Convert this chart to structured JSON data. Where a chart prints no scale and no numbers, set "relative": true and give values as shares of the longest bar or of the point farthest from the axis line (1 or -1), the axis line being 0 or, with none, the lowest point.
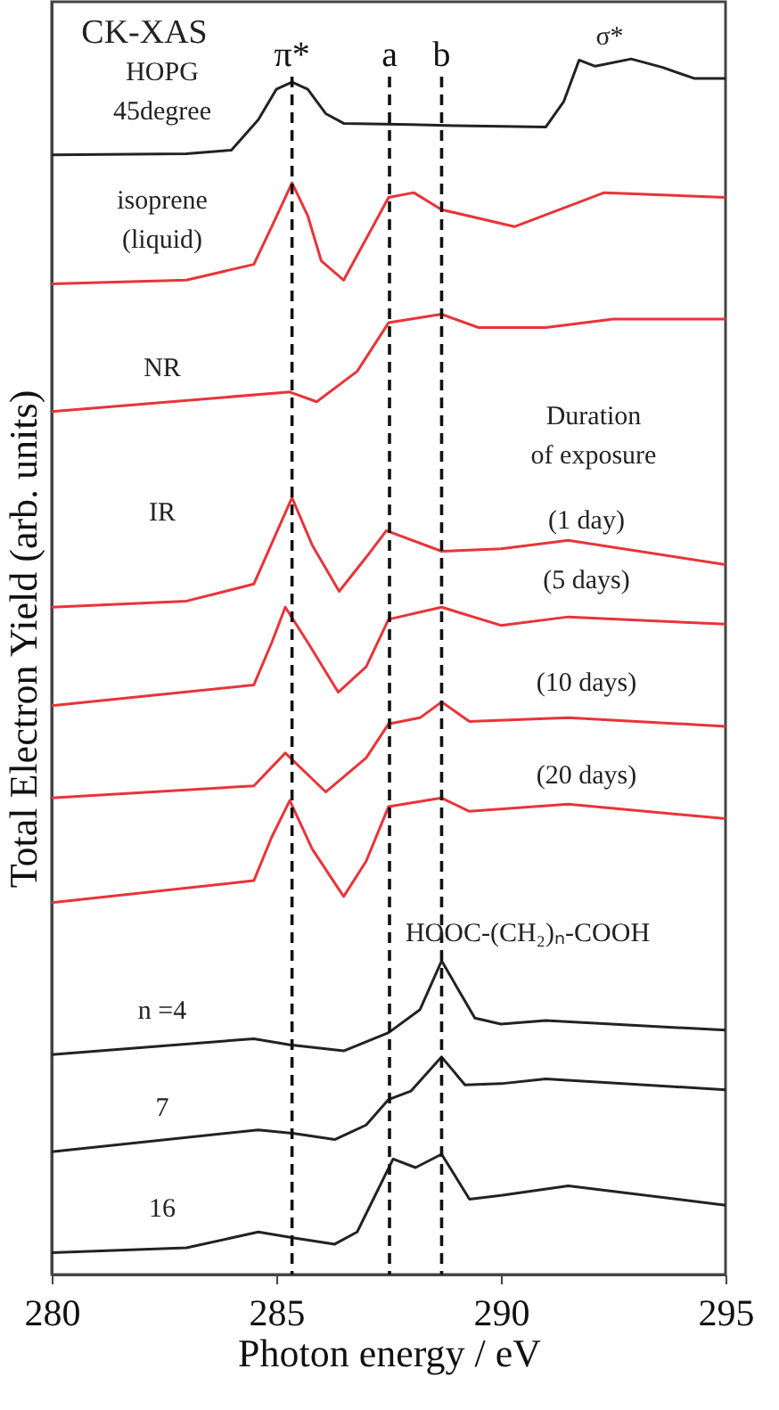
{
  "chart_data": {
    "type": "line",
    "relative": true,
    "xlabel": "Photon energy / eV",
    "ylabel": "Total Electron Yield (arb. units)",
    "xlim": [
      280,
      295
    ],
    "xticks": [
      280,
      285,
      290,
      295
    ],
    "grid": false,
    "legend": false,
    "line_style": "solid",
    "marker": "none",
    "series": [
      {
        "name": "HOPG\n45degree",
        "color": "#222222",
        "x": [
          280,
          283,
          284,
          284.6,
          285,
          285.35,
          285.7,
          286.1,
          286.5,
          288,
          289,
          291,
          291.4,
          291.74,
          292.1,
          292.9,
          293.6,
          294.3,
          295
        ],
        "values": [
          0.921,
          0.922,
          0.925,
          0.95,
          0.975,
          0.981,
          0.975,
          0.955,
          0.947,
          0.946,
          0.945,
          0.944,
          0.965,
          0.999,
          0.994,
          1.0,
          0.993,
          0.984,
          0.984
        ]
      },
      {
        "name": "isoprene\n(liquid)",
        "color": "#e8343a",
        "x": [
          280,
          283,
          284.5,
          285,
          285.35,
          285.7,
          286,
          286.5,
          287.5,
          288.06,
          288.68,
          290.3,
          292.3,
          295
        ],
        "values": [
          0.815,
          0.818,
          0.831,
          0.87,
          0.898,
          0.871,
          0.834,
          0.818,
          0.886,
          0.89,
          0.876,
          0.862,
          0.89,
          0.886
        ]
      },
      {
        "name": "NR",
        "color": "#e8343a",
        "x": [
          280,
          285.3,
          285.9,
          286.8,
          287.5,
          288.68,
          289.5,
          291,
          292.5,
          295
        ],
        "values": [
          0.71,
          0.726,
          0.718,
          0.743,
          0.783,
          0.79,
          0.779,
          0.779,
          0.786,
          0.786
        ]
      },
      {
        "name": "(1 day)",
        "color": "#e8343a",
        "x": [
          280,
          283,
          284.5,
          285,
          285.35,
          285.8,
          286.4,
          287,
          287.45,
          288.68,
          290,
          291.5,
          295
        ],
        "values": [
          0.549,
          0.554,
          0.568,
          0.61,
          0.639,
          0.6,
          0.562,
          0.59,
          0.612,
          0.595,
          0.597,
          0.604,
          0.584
        ]
      },
      {
        "name": "(5 days)",
        "color": "#e8343a",
        "x": [
          280,
          284.5,
          284.9,
          285.2,
          285.7,
          286.38,
          287,
          287.5,
          288.68,
          290,
          291.5,
          295
        ],
        "values": [
          0.468,
          0.485,
          0.52,
          0.549,
          0.52,
          0.479,
          0.5,
          0.539,
          0.549,
          0.534,
          0.541,
          0.535
        ]
      },
      {
        "name": "(10 days)",
        "color": "#e8343a",
        "x": [
          280,
          284.5,
          285.2,
          286.1,
          287,
          287.5,
          288.2,
          288.68,
          289.3,
          291.5,
          295
        ],
        "values": [
          0.392,
          0.402,
          0.429,
          0.397,
          0.425,
          0.453,
          0.458,
          0.471,
          0.455,
          0.458,
          0.451
        ]
      },
      {
        "name": "(20 days)",
        "color": "#e8343a",
        "x": [
          280,
          284.5,
          284.9,
          285.3,
          285.8,
          286.5,
          287,
          287.5,
          288.68,
          289.3,
          291.5,
          295
        ],
        "values": [
          0.306,
          0.324,
          0.36,
          0.39,
          0.35,
          0.311,
          0.34,
          0.385,
          0.392,
          0.381,
          0.387,
          0.375
        ]
      },
      {
        "name": "n =4",
        "color": "#222222",
        "x": [
          280,
          284.5,
          285.3,
          286.5,
          287.5,
          288.2,
          288.68,
          289.42,
          290,
          291,
          295
        ],
        "values": [
          0.181,
          0.194,
          0.189,
          0.184,
          0.199,
          0.218,
          0.258,
          0.211,
          0.206,
          0.209,
          0.201
        ]
      },
      {
        "name": "7",
        "color": "#222222",
        "x": [
          280,
          284.6,
          285.4,
          286.3,
          287,
          287.5,
          288,
          288.68,
          289.2,
          290,
          291,
          295
        ],
        "values": [
          0.101,
          0.119,
          0.116,
          0.111,
          0.123,
          0.144,
          0.151,
          0.179,
          0.156,
          0.157,
          0.161,
          0.152
        ]
      },
      {
        "name": "16",
        "color": "#222222",
        "x": [
          280,
          283,
          284.6,
          285.4,
          286.3,
          286.8,
          287.6,
          288.1,
          288.68,
          289.3,
          290,
          291.5,
          295
        ],
        "values": [
          0.018,
          0.022,
          0.035,
          0.03,
          0.025,
          0.035,
          0.095,
          0.088,
          0.099,
          0.062,
          0.065,
          0.073,
          0.057
        ]
      }
    ],
    "ref_lines": [
      {
        "axis": "x",
        "value": 285.35,
        "label": "π*",
        "line_style": "dashed",
        "color": "#111111"
      },
      {
        "axis": "x",
        "value": 287.52,
        "label": "a",
        "line_style": "dashed",
        "color": "#111111"
      },
      {
        "axis": "x",
        "value": 288.68,
        "label": "b",
        "line_style": "dashed",
        "color": "#111111"
      }
    ],
    "annotations": [
      "CK-XAS",
      "σ*",
      "Duration\nof exposure",
      "IR",
      "HOOC-(CH₂)ₙ-COOH"
    ]
  }
}
